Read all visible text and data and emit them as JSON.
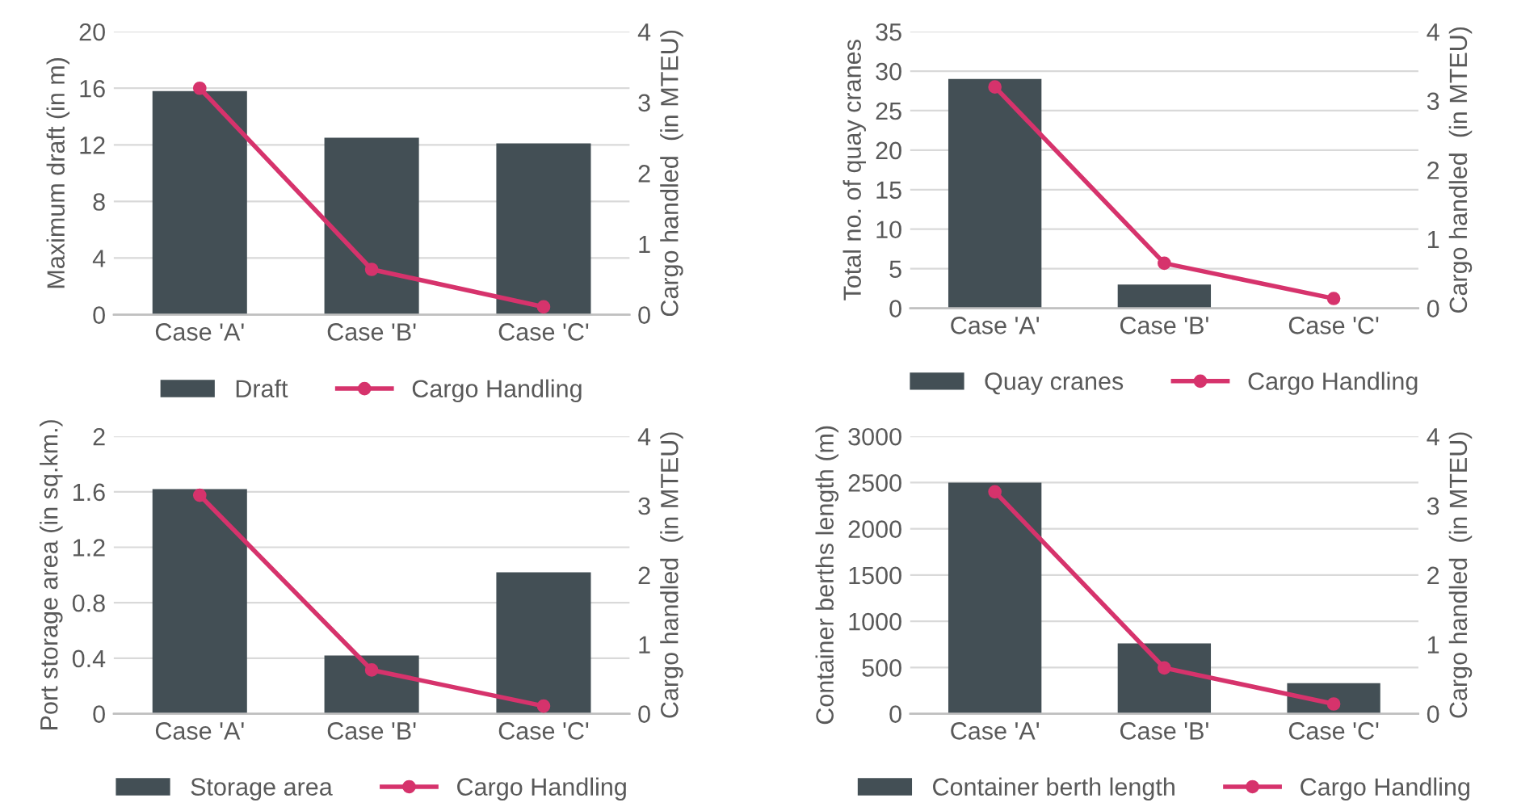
{
  "chart_data": [
    {
      "type": "bar",
      "categories": [
        "Case 'A'",
        "Case 'B'",
        "Case 'C'"
      ],
      "ylabel": "Maximum draft (in m)",
      "y2label": "Cargo handled  (in MTEU)",
      "ylim": [
        0,
        20
      ],
      "yticks": [
        0,
        4,
        8,
        12,
        16,
        20
      ],
      "y2lim": [
        0,
        4
      ],
      "y2ticks": [
        0,
        1,
        2,
        3,
        4
      ],
      "grid": "y",
      "legend": "bottom",
      "series": [
        {
          "name": "Draft",
          "color": "#434f55",
          "values": [
            15.8,
            12.5,
            12.1
          ]
        },
        {
          "name": "Cargo Handling",
          "type": "line",
          "axis": "y2",
          "marker": "circle",
          "color": "#d6336c",
          "values": [
            3.2,
            0.64,
            0.11
          ]
        }
      ]
    },
    {
      "type": "bar",
      "categories": [
        "Case 'A'",
        "Case 'B'",
        "Case 'C'"
      ],
      "ylabel": "Total no. of quay cranes",
      "y2label": "Cargo handled  (in MTEU)",
      "ylim": [
        0,
        35
      ],
      "yticks": [
        0,
        5,
        10,
        15,
        20,
        25,
        30,
        35
      ],
      "y2lim": [
        0,
        4
      ],
      "y2ticks": [
        0,
        1,
        2,
        3,
        4
      ],
      "grid": "y",
      "legend": "bottom",
      "series": [
        {
          "name": "Quay cranes",
          "color": "#434f55",
          "values": [
            29,
            3,
            0
          ]
        },
        {
          "name": "Cargo Handling",
          "type": "line",
          "axis": "y2",
          "marker": "circle",
          "color": "#d6336c",
          "values": [
            3.2,
            0.65,
            0.14
          ]
        }
      ]
    },
    {
      "type": "bar",
      "categories": [
        "Case 'A'",
        "Case 'B'",
        "Case 'C'"
      ],
      "ylabel": "Port storage area (in sq.km.)",
      "y2label": "Cargo handled  (in MTEU)",
      "ylim": [
        0,
        2
      ],
      "yticks": [
        0,
        0.4,
        0.8,
        1.2,
        1.6,
        2
      ],
      "y2lim": [
        0,
        4
      ],
      "y2ticks": [
        0,
        1,
        2,
        3,
        4
      ],
      "grid": "y",
      "legend": "bottom",
      "series": [
        {
          "name": "Storage area",
          "color": "#434f55",
          "values": [
            1.62,
            0.42,
            1.02
          ]
        },
        {
          "name": "Cargo Handling",
          "type": "line",
          "axis": "y2",
          "marker": "circle",
          "color": "#d6336c",
          "values": [
            3.15,
            0.63,
            0.11
          ]
        }
      ]
    },
    {
      "type": "bar",
      "categories": [
        "Case 'A'",
        "Case 'B'",
        "Case 'C'"
      ],
      "ylabel": "Container berths length (m)",
      "y2label": "Cargo handled  (in MTEU)",
      "ylim": [
        0,
        3000
      ],
      "yticks": [
        0,
        500,
        1000,
        1500,
        2000,
        2500,
        3000
      ],
      "y2lim": [
        0,
        4
      ],
      "y2ticks": [
        0,
        1,
        2,
        3,
        4
      ],
      "grid": "y",
      "legend": "bottom",
      "series": [
        {
          "name": "Container berth length",
          "color": "#434f55",
          "values": [
            2500,
            760,
            330
          ]
        },
        {
          "name": "Cargo Handling",
          "type": "line",
          "axis": "y2",
          "marker": "circle",
          "color": "#d6336c",
          "values": [
            3.2,
            0.66,
            0.14
          ]
        }
      ]
    }
  ]
}
